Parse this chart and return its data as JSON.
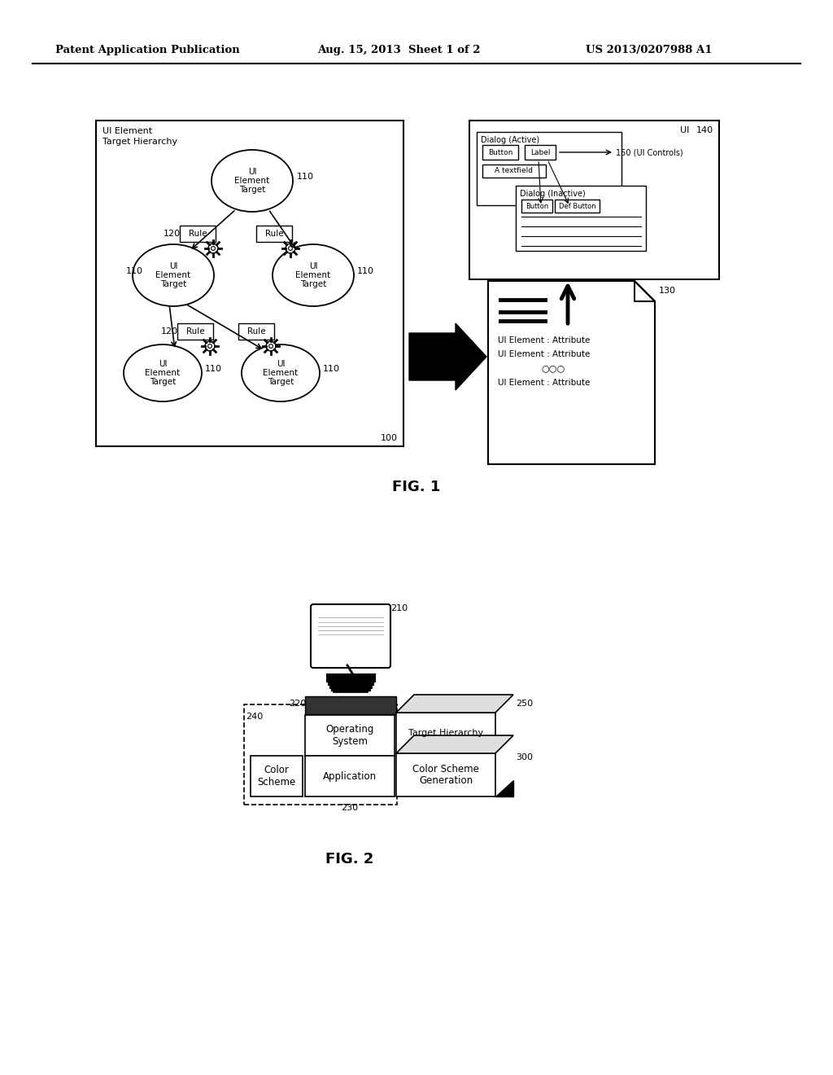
{
  "bg_color": "#ffffff",
  "header_left": "Patent Application Publication",
  "header_mid": "Aug. 15, 2013  Sheet 1 of 2",
  "header_right": "US 2013/0207988 A1",
  "fig1_caption": "FIG. 1",
  "fig2_caption": "FIG. 2"
}
